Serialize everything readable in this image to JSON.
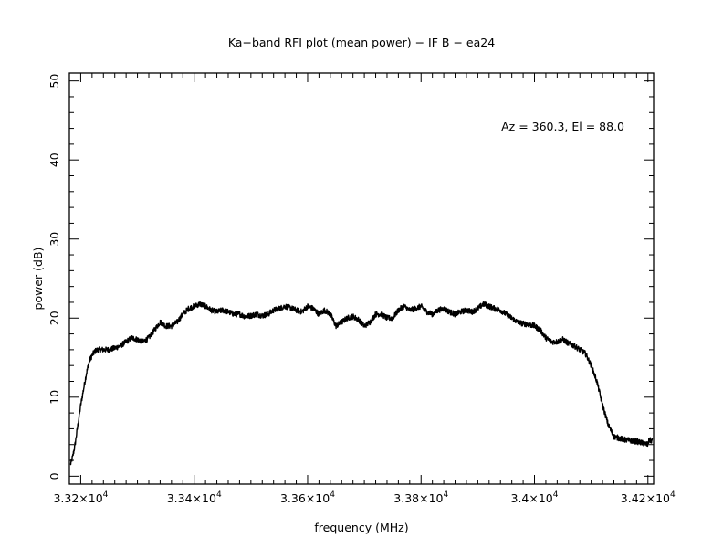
{
  "chart_data": {
    "type": "line",
    "title": "Ka−band RFI plot (mean power) − IF B − ea24",
    "xlabel": "frequency (MHz)",
    "ylabel": "power (dB)",
    "annotation": "Az = 360.3, El = 88.0",
    "xlim": [
      33180,
      34210
    ],
    "ylim": [
      -1,
      51
    ],
    "grid": false,
    "x_ticks": [
      {
        "value": 33200,
        "mantissa": "3.32",
        "exp": "4"
      },
      {
        "value": 33400,
        "mantissa": "3.34",
        "exp": "4"
      },
      {
        "value": 33600,
        "mantissa": "3.36",
        "exp": "4"
      },
      {
        "value": 33800,
        "mantissa": "3.38",
        "exp": "4"
      },
      {
        "value": 34000,
        "mantissa": "3.4",
        "exp": "4"
      },
      {
        "value": 34200,
        "mantissa": "3.42",
        "exp": "4"
      }
    ],
    "x_tick_sep": "×10",
    "y_ticks": [
      {
        "value": 0,
        "label": "0"
      },
      {
        "value": 10,
        "label": "10"
      },
      {
        "value": 20,
        "label": "20"
      },
      {
        "value": 30,
        "label": "30"
      },
      {
        "value": 40,
        "label": "40"
      },
      {
        "value": 50,
        "label": "50"
      }
    ],
    "series": [
      {
        "color": "#000000",
        "x": [
          33182,
          33186,
          33190,
          33195,
          33200,
          33205,
          33210,
          33215,
          33220,
          33225,
          33230,
          33240,
          33250,
          33260,
          33270,
          33280,
          33290,
          33300,
          33310,
          33320,
          33330,
          33340,
          33350,
          33360,
          33370,
          33380,
          33390,
          33400,
          33410,
          33420,
          33430,
          33440,
          33450,
          33460,
          33470,
          33480,
          33490,
          33500,
          33510,
          33520,
          33530,
          33540,
          33550,
          33560,
          33570,
          33580,
          33590,
          33600,
          33610,
          33620,
          33630,
          33640,
          33650,
          33660,
          33670,
          33680,
          33690,
          33700,
          33710,
          33720,
          33730,
          33740,
          33750,
          33760,
          33770,
          33780,
          33790,
          33800,
          33810,
          33820,
          33830,
          33840,
          33850,
          33860,
          33870,
          33880,
          33890,
          33900,
          33910,
          33920,
          33930,
          33940,
          33950,
          33960,
          33970,
          33980,
          33990,
          34000,
          34010,
          34020,
          34030,
          34040,
          34050,
          34060,
          34070,
          34080,
          34090,
          34100,
          34110,
          34120,
          34130,
          34140,
          34150,
          34160,
          34170,
          34180,
          34190,
          34195,
          34200,
          34202,
          34205,
          34208
        ],
        "y": [
          1.5,
          2.5,
          4,
          6.5,
          9,
          11,
          13,
          14.5,
          15.3,
          15.8,
          16,
          16,
          16,
          16.2,
          16.5,
          17,
          17.5,
          17.3,
          17,
          17.5,
          18.5,
          19.5,
          19,
          19,
          19.5,
          20.5,
          21.2,
          21.5,
          21.8,
          21.5,
          21,
          20.8,
          21,
          20.8,
          20.5,
          20.5,
          20.2,
          20.3,
          20.5,
          20.3,
          20.5,
          21,
          21.2,
          21.5,
          21.3,
          21,
          20.8,
          21.5,
          21.2,
          20.5,
          21,
          20.5,
          19,
          19.5,
          20,
          20.2,
          19.8,
          19,
          19.5,
          20.5,
          20.5,
          20,
          20,
          21,
          21.5,
          21,
          21.2,
          21.5,
          20.8,
          20.5,
          21,
          21.2,
          20.8,
          20.5,
          20.8,
          21,
          20.8,
          21.2,
          21.8,
          21.5,
          21.2,
          21,
          20.5,
          20,
          19.5,
          19.3,
          19.2,
          19,
          18.5,
          17.5,
          17,
          17,
          17.3,
          16.8,
          16.5,
          16,
          15.5,
          14,
          12,
          9,
          6.5,
          5,
          4.8,
          4.6,
          4.5,
          4.4,
          4.2,
          4.1,
          4.0,
          4.6,
          4.5,
          4.5
        ],
        "noise_amplitude": 0.35
      }
    ]
  }
}
